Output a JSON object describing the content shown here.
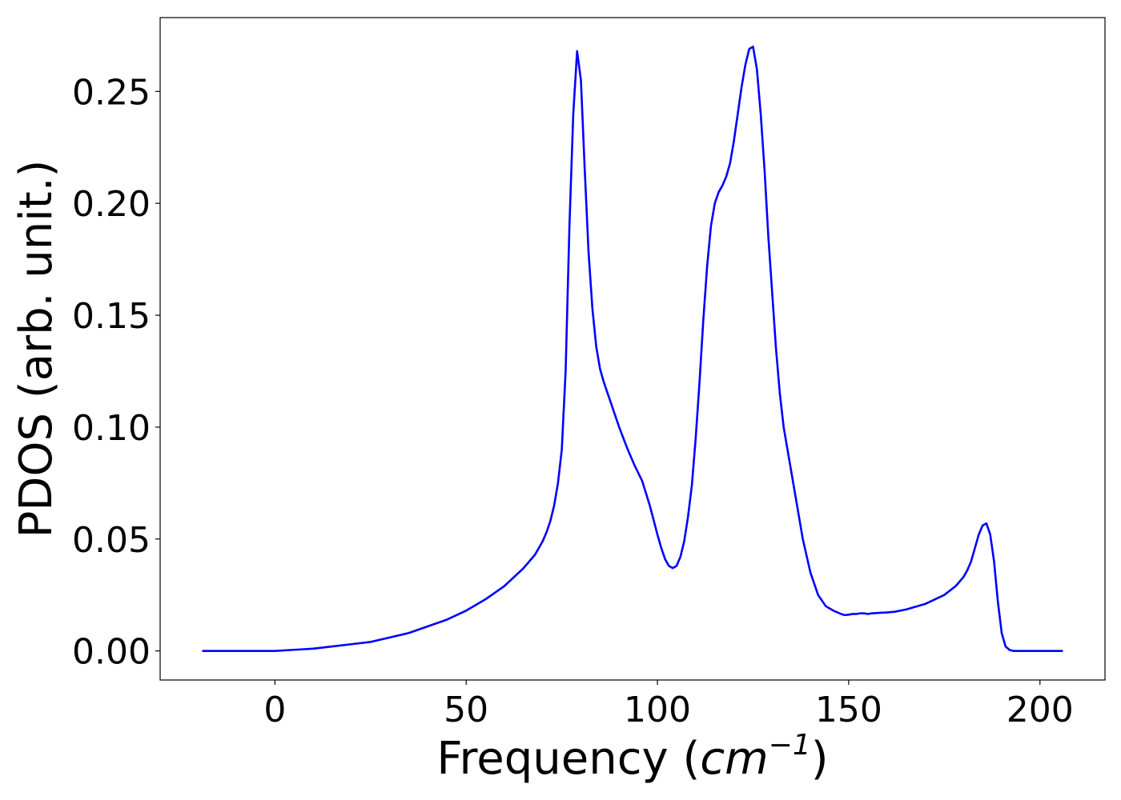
{
  "chart_data": {
    "type": "line",
    "title": "",
    "xlabel": "Frequency (",
    "xlabel_math": "cm",
    "xlabel_sup": "−1",
    "xlabel_end": ")",
    "ylabel": "PDOS (arb. unit.)",
    "xlim": [
      -30,
      217
    ],
    "ylim": [
      -0.013,
      0.283
    ],
    "xticks": [
      0,
      50,
      100,
      150,
      200
    ],
    "xtick_labels": [
      "0",
      "50",
      "100",
      "150",
      "200"
    ],
    "yticks": [
      0.0,
      0.05,
      0.1,
      0.15,
      0.2,
      0.25
    ],
    "ytick_labels": [
      "0.00",
      "0.05",
      "0.10",
      "0.15",
      "0.20",
      "0.25"
    ],
    "grid": false,
    "series": [
      {
        "color": "#0000ff",
        "x": [
          -19,
          -10,
          0,
          5,
          10,
          15,
          20,
          25,
          30,
          35,
          40,
          45,
          50,
          55,
          60,
          65,
          68,
          70,
          71,
          72,
          73,
          74,
          75,
          76,
          77,
          78,
          79,
          80,
          81,
          82,
          83,
          84,
          85,
          86,
          88,
          90,
          92,
          94,
          96,
          98,
          100,
          101,
          102,
          103,
          104,
          105,
          106,
          107,
          108,
          109,
          110,
          111,
          112,
          113,
          114,
          115,
          116,
          117,
          118,
          119,
          120,
          121,
          122,
          123,
          124,
          125,
          126,
          127,
          128,
          129,
          130,
          131,
          132,
          133,
          134,
          135,
          136,
          137,
          138,
          140,
          142,
          144,
          146,
          148,
          149,
          150,
          151,
          152,
          153,
          154,
          155,
          156,
          158,
          160,
          162,
          165,
          170,
          175,
          178,
          180,
          181,
          182,
          183,
          184,
          185,
          186,
          187,
          188,
          189,
          190,
          191,
          192,
          193,
          195,
          200,
          206
        ],
        "y": [
          0.0,
          0.0,
          0.0,
          0.0005,
          0.001,
          0.002,
          0.003,
          0.004,
          0.006,
          0.008,
          0.011,
          0.014,
          0.018,
          0.023,
          0.029,
          0.037,
          0.043,
          0.049,
          0.053,
          0.058,
          0.065,
          0.075,
          0.09,
          0.125,
          0.19,
          0.24,
          0.268,
          0.255,
          0.215,
          0.178,
          0.153,
          0.136,
          0.126,
          0.12,
          0.11,
          0.1,
          0.091,
          0.083,
          0.076,
          0.065,
          0.052,
          0.046,
          0.041,
          0.038,
          0.037,
          0.038,
          0.042,
          0.049,
          0.06,
          0.074,
          0.095,
          0.12,
          0.148,
          0.172,
          0.19,
          0.2,
          0.205,
          0.208,
          0.212,
          0.218,
          0.228,
          0.24,
          0.252,
          0.262,
          0.269,
          0.27,
          0.26,
          0.24,
          0.215,
          0.185,
          0.16,
          0.135,
          0.115,
          0.1,
          0.09,
          0.08,
          0.07,
          0.06,
          0.05,
          0.035,
          0.025,
          0.02,
          0.018,
          0.0165,
          0.016,
          0.0162,
          0.0165,
          0.0165,
          0.0168,
          0.0168,
          0.0165,
          0.0168,
          0.017,
          0.0172,
          0.0175,
          0.0185,
          0.021,
          0.025,
          0.029,
          0.033,
          0.036,
          0.04,
          0.046,
          0.052,
          0.056,
          0.057,
          0.052,
          0.04,
          0.022,
          0.008,
          0.002,
          0.0005,
          0.0,
          0.0,
          0.0,
          0.0
        ]
      }
    ]
  }
}
